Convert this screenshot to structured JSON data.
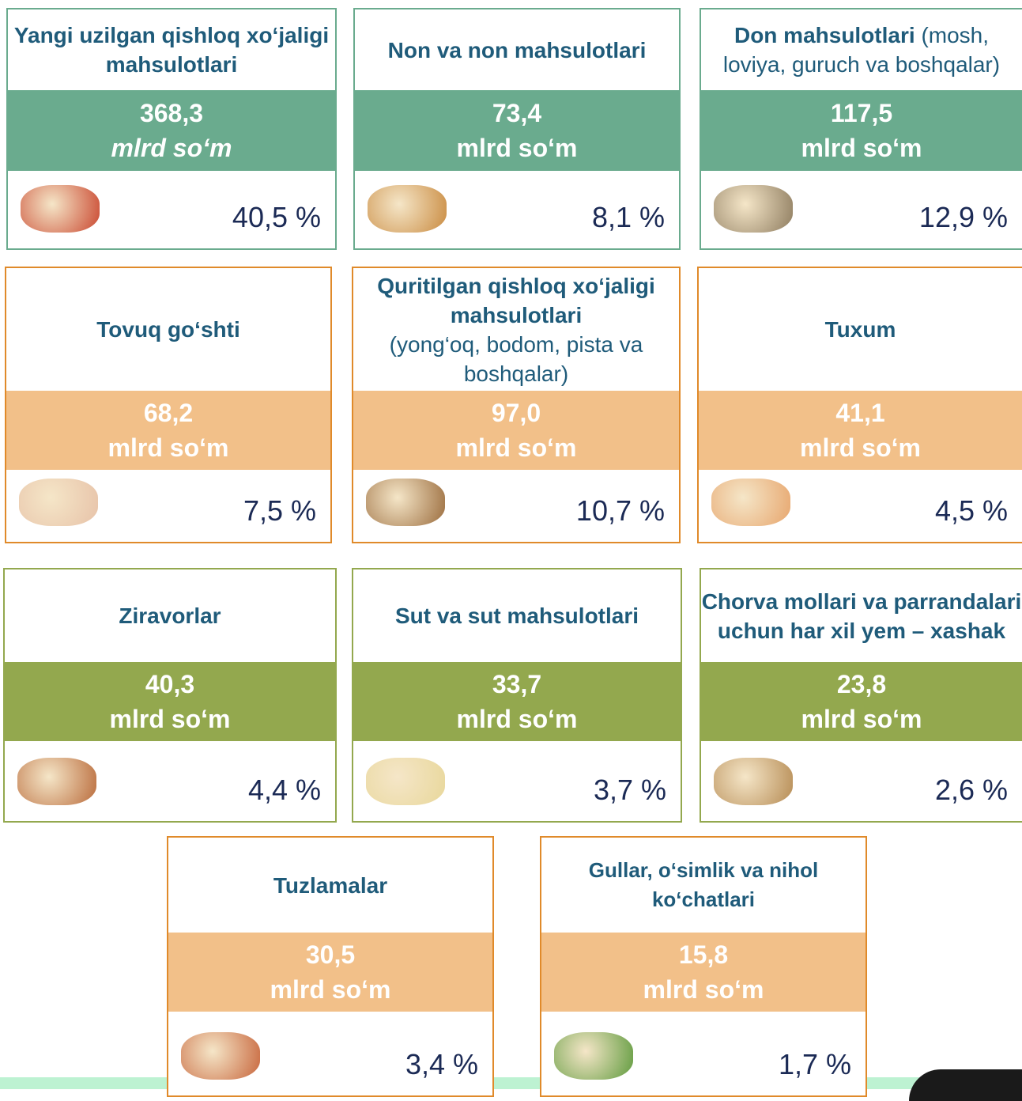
{
  "cards": [
    {
      "title": "Yangi uzilgan qishloq xo‘jaligi mahsulotlari",
      "value": "368,3",
      "unit": "mlrd so‘m",
      "percent": "40,5 %"
    },
    {
      "title": "Non va non mahsulotlari",
      "value": "73,4",
      "unit": "mlrd so‘m",
      "percent": "8,1 %"
    },
    {
      "title": "Don mahsulotlari",
      "note": "(mosh, loviya, guruch va boshqalar)",
      "value": "117,5",
      "unit": "mlrd so‘m",
      "percent": "12,9 %"
    },
    {
      "title": "Tovuq go‘shti",
      "value": "68,2",
      "unit": "mlrd so‘m",
      "percent": "7,5 %"
    },
    {
      "title": "Quritilgan qishloq xo‘jaligi mahsulotlari",
      "note": "(yong‘oq, bodom, pista va boshqalar)",
      "value": "97,0",
      "unit": "mlrd so‘m",
      "percent": "10,7 %"
    },
    {
      "title": "Tuxum",
      "value": "41,1",
      "unit": "mlrd so‘m",
      "percent": "4,5 %"
    },
    {
      "title": "Ziravorlar",
      "value": "40,3",
      "unit": "mlrd so‘m",
      "percent": "4,4 %"
    },
    {
      "title": "Sut va sut mahsulotlari",
      "value": "33,7",
      "unit": "mlrd so‘m",
      "percent": "3,7 %"
    },
    {
      "title": "Chorva mollari va parrandalari uchun har xil yem – xashak",
      "value": "23,8",
      "unit": "mlrd so‘m",
      "percent": "2,6 %"
    },
    {
      "title": "Tuzlamalar",
      "value": "30,5",
      "unit": "mlrd so‘m",
      "percent": "3,4 %"
    },
    {
      "title": "Gullar, o‘simlik va nihol ko‘chatlari",
      "value": "15,8",
      "unit": "mlrd so‘m",
      "percent": "1,7 %"
    }
  ]
}
